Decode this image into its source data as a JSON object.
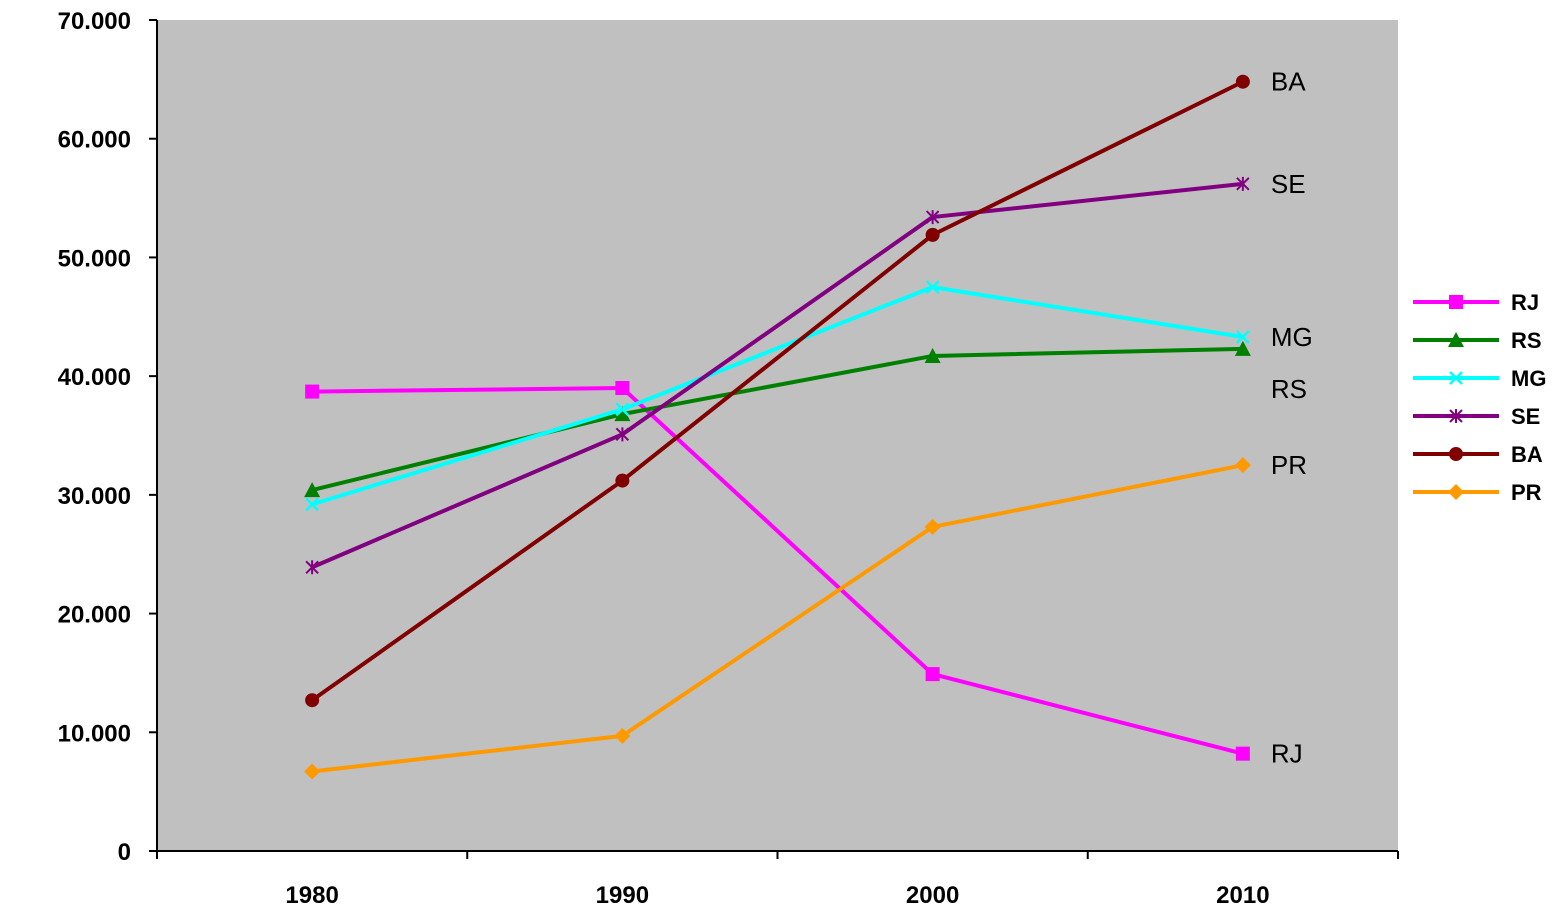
{
  "chart_data": {
    "type": "line",
    "x": [
      "1980",
      "1990",
      "2000",
      "2010"
    ],
    "ylim": [
      0,
      70000
    ],
    "yticks": [
      0,
      10000,
      20000,
      30000,
      40000,
      50000,
      60000,
      70000
    ],
    "ytick_labels": [
      "0",
      "10.000",
      "20.000",
      "30.000",
      "40.000",
      "50.000",
      "60.000",
      "70.000"
    ],
    "xtick_labels": [
      "1980",
      "1990",
      "2000",
      "2010"
    ],
    "grid": false,
    "plot_background": "#c0c0c0",
    "legend_position": "right",
    "series": [
      {
        "name": "RJ",
        "color": "#ff00ff",
        "marker": "square",
        "values": [
          38700,
          39000,
          14900,
          8200
        ],
        "end_label": "RJ"
      },
      {
        "name": "RS",
        "color": "#008000",
        "marker": "triangle",
        "values": [
          30400,
          36800,
          41700,
          42300
        ],
        "end_label": "RS"
      },
      {
        "name": "MG",
        "color": "#00ffff",
        "marker": "x",
        "values": [
          29200,
          37200,
          47500,
          43300
        ],
        "end_label": "MG"
      },
      {
        "name": "SE",
        "color": "#800080",
        "marker": "star",
        "values": [
          23900,
          35100,
          53400,
          56200
        ],
        "end_label": "SE"
      },
      {
        "name": "BA",
        "color": "#800000",
        "marker": "circle",
        "values": [
          12700,
          31200,
          51900,
          64800
        ],
        "end_label": "BA"
      },
      {
        "name": "PR",
        "color": "#ff9900",
        "marker": "diamond",
        "values": [
          6700,
          9700,
          27300,
          32500
        ],
        "end_label": "PR"
      }
    ]
  }
}
